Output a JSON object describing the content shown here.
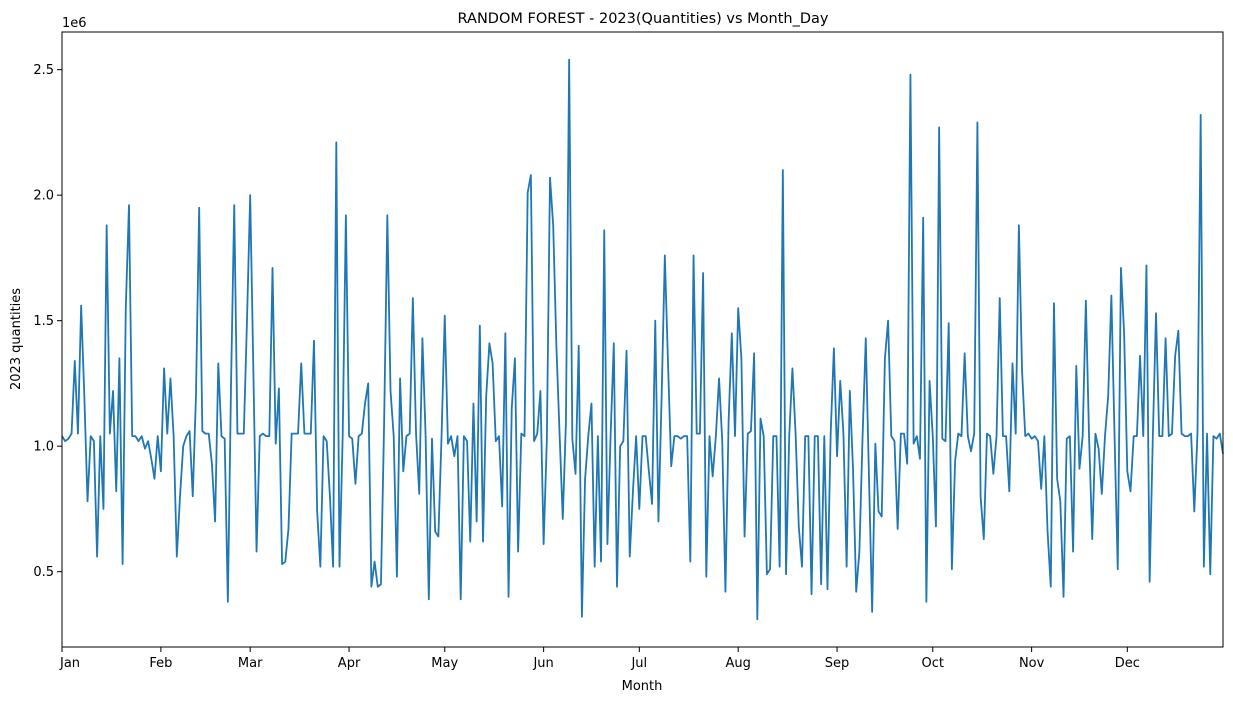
{
  "chart_data": {
    "type": "line",
    "title": "RANDOM FOREST - 2023(Quantities) vs Month_Day",
    "xlabel": "Month",
    "ylabel": "2023 quantities",
    "y_offset_label": "1e6",
    "x_tick_labels": [
      "Jan",
      "Feb",
      "Mar",
      "Apr",
      "May",
      "Jun",
      "Jul",
      "Aug",
      "Sep",
      "Oct",
      "Nov",
      "Dec"
    ],
    "x_tick_days": [
      1,
      32,
      60,
      91,
      121,
      152,
      182,
      213,
      244,
      274,
      305,
      335
    ],
    "xlim": [
      1,
      365
    ],
    "y_tick_values": [
      0.5,
      1.0,
      1.5,
      2.0,
      2.5
    ],
    "y_tick_labels": [
      "0.5",
      "1.0",
      "1.5",
      "2.0",
      "2.5"
    ],
    "ylim": [
      0.2,
      2.65
    ],
    "grid": false,
    "line_color": "#1f77b4",
    "series": [
      {
        "values": [
          1.04,
          1.02,
          1.03,
          1.05,
          1.34,
          1.05,
          1.56,
          1.2,
          0.78,
          1.04,
          1.02,
          0.56,
          1.04,
          0.75,
          1.88,
          1.05,
          1.22,
          0.82,
          1.35,
          0.53,
          1.55,
          1.96,
          1.04,
          1.04,
          1.02,
          1.04,
          0.99,
          1.02,
          0.95,
          0.87,
          1.04,
          0.9,
          1.31,
          1.05,
          1.27,
          1.04,
          0.56,
          0.8,
          1.0,
          1.04,
          1.06,
          0.8,
          1.2,
          1.95,
          1.06,
          1.05,
          1.05,
          0.93,
          0.7,
          1.33,
          1.04,
          1.03,
          0.38,
          1.25,
          1.96,
          1.05,
          1.05,
          1.05,
          1.5,
          2.0,
          1.3,
          0.58,
          1.04,
          1.05,
          1.04,
          1.04,
          1.71,
          1.01,
          1.23,
          0.53,
          0.54,
          0.67,
          1.05,
          1.05,
          1.05,
          1.33,
          1.05,
          1.05,
          1.05,
          1.42,
          0.74,
          0.52,
          1.04,
          1.02,
          0.8,
          0.52,
          2.21,
          0.52,
          1.04,
          1.92,
          1.04,
          1.03,
          0.85,
          1.04,
          1.05,
          1.17,
          1.25,
          0.44,
          0.54,
          0.44,
          0.45,
          1.1,
          1.92,
          1.22,
          1.04,
          0.48,
          1.27,
          0.9,
          1.04,
          1.05,
          1.59,
          1.05,
          0.81,
          1.43,
          1.04,
          0.39,
          1.03,
          0.66,
          0.64,
          1.04,
          1.52,
          1.01,
          1.04,
          0.96,
          1.04,
          0.39,
          1.04,
          1.02,
          0.62,
          1.17,
          0.7,
          1.48,
          0.62,
          1.2,
          1.41,
          1.33,
          1.02,
          1.04,
          0.76,
          1.45,
          0.4,
          1.15,
          1.35,
          0.58,
          1.05,
          1.04,
          2.01,
          2.08,
          1.02,
          1.05,
          1.22,
          0.61,
          1.02,
          2.07,
          1.88,
          1.4,
          1.05,
          0.71,
          1.1,
          2.54,
          1.03,
          0.89,
          1.4,
          0.32,
          0.87,
          1.04,
          1.17,
          0.52,
          1.04,
          0.54,
          1.86,
          0.61,
          1.04,
          1.41,
          0.44,
          1.0,
          1.02,
          1.38,
          0.56,
          0.82,
          1.04,
          0.75,
          1.04,
          1.04,
          0.9,
          0.77,
          1.5,
          0.7,
          1.2,
          1.76,
          1.33,
          0.92,
          1.04,
          1.04,
          1.03,
          1.04,
          1.04,
          0.54,
          1.76,
          1.05,
          1.05,
          1.69,
          0.48,
          1.04,
          0.88,
          1.04,
          1.27,
          1.02,
          0.42,
          1.1,
          1.45,
          1.04,
          1.55,
          1.35,
          0.64,
          1.05,
          1.06,
          1.37,
          0.31,
          1.11,
          1.04,
          0.49,
          0.51,
          1.04,
          1.04,
          0.52,
          2.1,
          0.49,
          1.04,
          1.31,
          1.05,
          0.68,
          0.52,
          1.04,
          1.04,
          0.41,
          1.04,
          1.04,
          0.45,
          1.04,
          0.43,
          1.05,
          1.39,
          0.96,
          1.26,
          1.05,
          0.52,
          1.22,
          0.91,
          0.42,
          0.58,
          1.04,
          1.43,
          0.88,
          0.34,
          1.01,
          0.74,
          0.72,
          1.35,
          1.5,
          1.04,
          1.02,
          0.67,
          1.05,
          1.05,
          0.93,
          2.48,
          1.01,
          1.04,
          0.95,
          1.91,
          0.38,
          1.26,
          1.04,
          0.68,
          2.27,
          1.03,
          1.02,
          1.49,
          0.51,
          0.94,
          1.05,
          1.04,
          1.37,
          1.04,
          0.98,
          1.05,
          2.29,
          0.8,
          0.63,
          1.05,
          1.04,
          0.89,
          1.04,
          1.59,
          1.04,
          1.04,
          0.82,
          1.33,
          1.05,
          1.88,
          1.3,
          1.04,
          1.05,
          1.03,
          1.04,
          1.02,
          0.83,
          1.04,
          0.66,
          0.44,
          1.57,
          0.87,
          0.78,
          0.4,
          1.03,
          1.04,
          0.58,
          1.32,
          0.91,
          1.04,
          1.58,
          1.04,
          0.63,
          1.05,
          0.99,
          0.81,
          1.04,
          1.2,
          1.6,
          1.04,
          0.51,
          1.71,
          1.45,
          0.9,
          0.82,
          1.04,
          1.04,
          1.36,
          1.04,
          1.72,
          0.46,
          1.04,
          1.53,
          1.04,
          1.04,
          1.43,
          1.04,
          1.05,
          1.36,
          1.46,
          1.05,
          1.04,
          1.04,
          1.05,
          0.74,
          1.05,
          2.32,
          0.52,
          1.05,
          0.49,
          1.04,
          1.03,
          1.05,
          0.97
        ]
      }
    ]
  }
}
